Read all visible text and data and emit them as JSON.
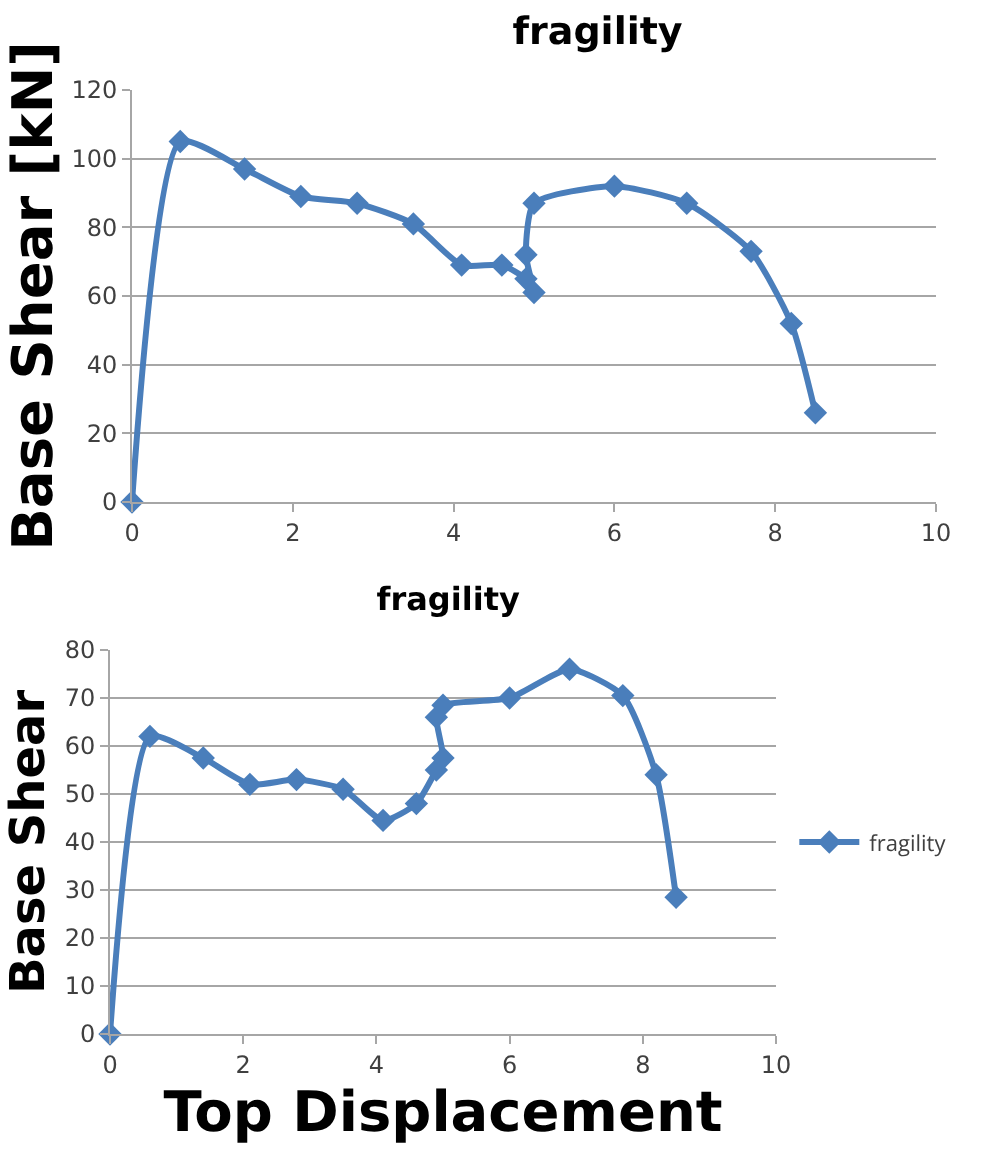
{
  "chart_data": [
    {
      "type": "line",
      "title": "fragility",
      "ylabel": "Base Shear [kN]",
      "xlim": [
        0,
        10
      ],
      "xticks": [
        0,
        2,
        4,
        6,
        8,
        10
      ],
      "ylim": [
        0,
        120
      ],
      "yticks": [
        0,
        20,
        40,
        60,
        80,
        100,
        120
      ],
      "grid": "y",
      "legend": false,
      "marker": "diamond",
      "line_style": "solid",
      "series": [
        {
          "color": "#4a7ebb",
          "x": [
            0,
            0.6,
            1.4,
            2.1,
            2.8,
            3.5,
            4.1,
            4.6,
            4.9,
            5.0,
            4.9,
            5.0,
            6.0,
            6.9,
            7.7,
            8.2,
            8.5
          ],
          "values": [
            0,
            105,
            97,
            89,
            87,
            81,
            69,
            69,
            65,
            61,
            72,
            87,
            92,
            87,
            73,
            52,
            26
          ]
        }
      ]
    },
    {
      "type": "line",
      "title": "fragility",
      "ylabel": "Base Shear",
      "xlabel": "Top Displacement",
      "xlim": [
        0,
        10
      ],
      "xticks": [
        0,
        2,
        4,
        6,
        8,
        10
      ],
      "ylim": [
        0,
        80
      ],
      "yticks": [
        0,
        10,
        20,
        30,
        40,
        50,
        60,
        70,
        80
      ],
      "grid": "y",
      "legend": "right",
      "marker": "diamond",
      "line_style": "solid",
      "series": [
        {
          "name": "fragility",
          "color": "#4a7ebb",
          "x": [
            0,
            0.6,
            1.4,
            2.1,
            2.8,
            3.5,
            4.1,
            4.6,
            4.9,
            5.0,
            4.9,
            5.0,
            6.0,
            6.9,
            7.7,
            8.2,
            8.5
          ],
          "values": [
            0,
            62,
            57.5,
            52,
            53,
            51,
            44.5,
            48,
            55,
            57.5,
            66,
            68.5,
            70,
            76,
            70.5,
            54,
            28.5
          ]
        }
      ]
    }
  ]
}
